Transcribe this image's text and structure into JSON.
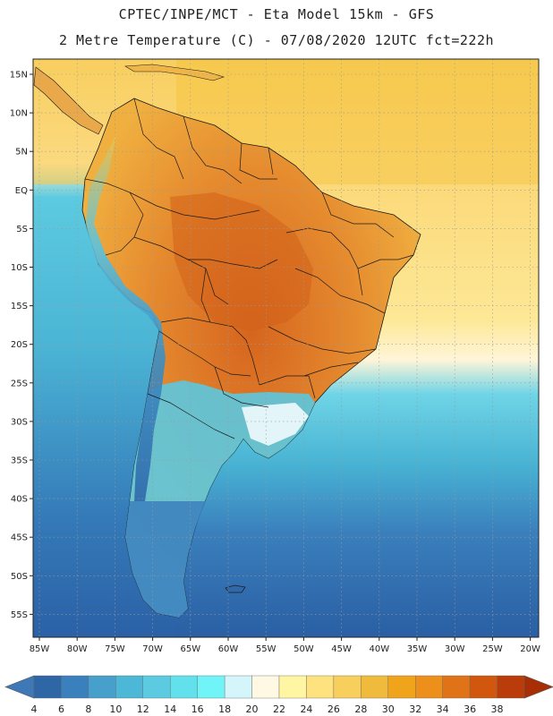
{
  "header": {
    "line1": "CPTEC/INPE/MCT -  Eta Model 15km - GFS",
    "line2": "2 Metre Temperature (C) - 07/08/2020 12UTC fct=222h"
  },
  "axes": {
    "lat_labels": [
      "15N",
      "10N",
      "5N",
      "EQ",
      "5S",
      "10S",
      "15S",
      "20S",
      "25S",
      "30S",
      "35S",
      "40S",
      "45S",
      "50S",
      "55S"
    ],
    "lon_labels": [
      "85W",
      "80W",
      "75W",
      "70W",
      "65W",
      "60W",
      "55W",
      "50W",
      "45W",
      "40W",
      "35W",
      "30W",
      "25W",
      "20W"
    ]
  },
  "colorbar": {
    "labels": [
      "4",
      "6",
      "8",
      "10",
      "12",
      "14",
      "16",
      "18",
      "20",
      "22",
      "24",
      "26",
      "28",
      "30",
      "32",
      "34",
      "36",
      "38"
    ],
    "colors": [
      "#3f78b6",
      "#2f66a6",
      "#3a80bd",
      "#47a0cc",
      "#4cb7d6",
      "#5ccae0",
      "#62e0ec",
      "#70f4f8",
      "#d4f6fb",
      "#fff9e3",
      "#fff5a2",
      "#fde27e",
      "#f8ce5c",
      "#f0bb3c",
      "#f0a41b",
      "#ec8f1b",
      "#e07317",
      "#d0570d",
      "#b93c0a",
      "#a82e06"
    ]
  },
  "colors": {
    "ocean_warm": "#fde693",
    "ocean_trop": "#f8cf62",
    "ocean_mid": "#5bc9de",
    "ocean_cold": "#2d63a9",
    "land_hot": "#dc7226",
    "land_warm": "#eda036",
    "land_cool": "#f0b53d",
    "andes": "#46a4cd"
  }
}
